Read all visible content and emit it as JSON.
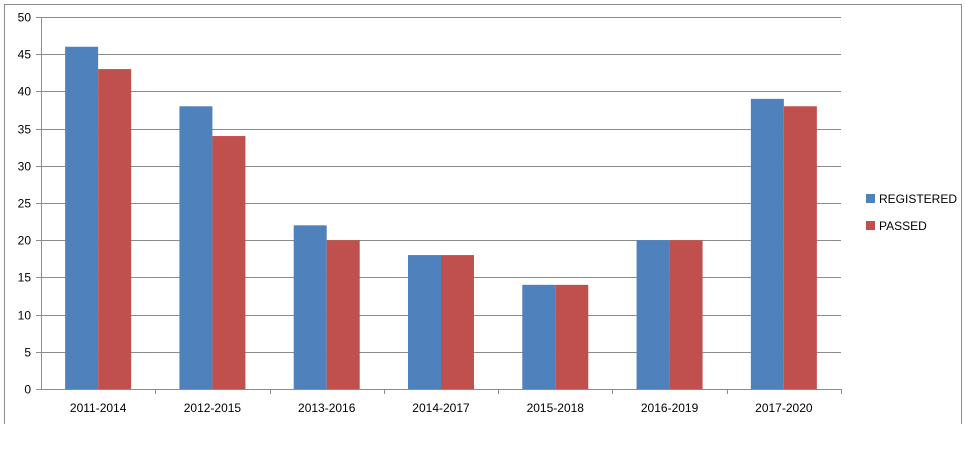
{
  "chart_data": {
    "type": "bar",
    "categories": [
      "2011-2014",
      "2012-2015",
      "2013-2016",
      "2014-2017",
      "2015-2018",
      "2016-2019",
      "2017-2020"
    ],
    "series": [
      {
        "name": "REGISTERED",
        "values": [
          46,
          38,
          22,
          18,
          14,
          20,
          39
        ],
        "color": "#4f81bd"
      },
      {
        "name": "PASSED",
        "values": [
          43,
          34,
          20,
          18,
          14,
          20,
          38
        ],
        "color": "#c0504d"
      }
    ],
    "title": "",
    "xlabel": "",
    "ylabel": "",
    "ylim": [
      0,
      50
    ],
    "yticks": [
      0,
      5,
      10,
      15,
      20,
      25,
      30,
      35,
      40,
      45,
      50
    ],
    "grid": true,
    "legend_position": "right"
  }
}
